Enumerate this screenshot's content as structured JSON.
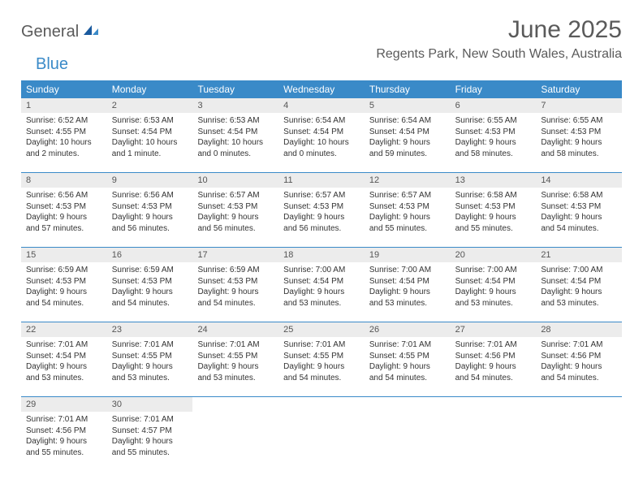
{
  "logo": {
    "part1": "General",
    "part2": "Blue"
  },
  "title": "June 2025",
  "location": "Regents Park, New South Wales, Australia",
  "colors": {
    "header_bg": "#3a8ac8",
    "daynum_bg": "#ececec",
    "text": "#333333",
    "logo_gray": "#5a5a5a",
    "logo_blue": "#3a8ac8"
  },
  "days_of_week": [
    "Sunday",
    "Monday",
    "Tuesday",
    "Wednesday",
    "Thursday",
    "Friday",
    "Saturday"
  ],
  "weeks": [
    [
      {
        "n": "1",
        "sr": "Sunrise: 6:52 AM",
        "ss": "Sunset: 4:55 PM",
        "d1": "Daylight: 10 hours",
        "d2": "and 2 minutes."
      },
      {
        "n": "2",
        "sr": "Sunrise: 6:53 AM",
        "ss": "Sunset: 4:54 PM",
        "d1": "Daylight: 10 hours",
        "d2": "and 1 minute."
      },
      {
        "n": "3",
        "sr": "Sunrise: 6:53 AM",
        "ss": "Sunset: 4:54 PM",
        "d1": "Daylight: 10 hours",
        "d2": "and 0 minutes."
      },
      {
        "n": "4",
        "sr": "Sunrise: 6:54 AM",
        "ss": "Sunset: 4:54 PM",
        "d1": "Daylight: 10 hours",
        "d2": "and 0 minutes."
      },
      {
        "n": "5",
        "sr": "Sunrise: 6:54 AM",
        "ss": "Sunset: 4:54 PM",
        "d1": "Daylight: 9 hours",
        "d2": "and 59 minutes."
      },
      {
        "n": "6",
        "sr": "Sunrise: 6:55 AM",
        "ss": "Sunset: 4:53 PM",
        "d1": "Daylight: 9 hours",
        "d2": "and 58 minutes."
      },
      {
        "n": "7",
        "sr": "Sunrise: 6:55 AM",
        "ss": "Sunset: 4:53 PM",
        "d1": "Daylight: 9 hours",
        "d2": "and 58 minutes."
      }
    ],
    [
      {
        "n": "8",
        "sr": "Sunrise: 6:56 AM",
        "ss": "Sunset: 4:53 PM",
        "d1": "Daylight: 9 hours",
        "d2": "and 57 minutes."
      },
      {
        "n": "9",
        "sr": "Sunrise: 6:56 AM",
        "ss": "Sunset: 4:53 PM",
        "d1": "Daylight: 9 hours",
        "d2": "and 56 minutes."
      },
      {
        "n": "10",
        "sr": "Sunrise: 6:57 AM",
        "ss": "Sunset: 4:53 PM",
        "d1": "Daylight: 9 hours",
        "d2": "and 56 minutes."
      },
      {
        "n": "11",
        "sr": "Sunrise: 6:57 AM",
        "ss": "Sunset: 4:53 PM",
        "d1": "Daylight: 9 hours",
        "d2": "and 56 minutes."
      },
      {
        "n": "12",
        "sr": "Sunrise: 6:57 AM",
        "ss": "Sunset: 4:53 PM",
        "d1": "Daylight: 9 hours",
        "d2": "and 55 minutes."
      },
      {
        "n": "13",
        "sr": "Sunrise: 6:58 AM",
        "ss": "Sunset: 4:53 PM",
        "d1": "Daylight: 9 hours",
        "d2": "and 55 minutes."
      },
      {
        "n": "14",
        "sr": "Sunrise: 6:58 AM",
        "ss": "Sunset: 4:53 PM",
        "d1": "Daylight: 9 hours",
        "d2": "and 54 minutes."
      }
    ],
    [
      {
        "n": "15",
        "sr": "Sunrise: 6:59 AM",
        "ss": "Sunset: 4:53 PM",
        "d1": "Daylight: 9 hours",
        "d2": "and 54 minutes."
      },
      {
        "n": "16",
        "sr": "Sunrise: 6:59 AM",
        "ss": "Sunset: 4:53 PM",
        "d1": "Daylight: 9 hours",
        "d2": "and 54 minutes."
      },
      {
        "n": "17",
        "sr": "Sunrise: 6:59 AM",
        "ss": "Sunset: 4:53 PM",
        "d1": "Daylight: 9 hours",
        "d2": "and 54 minutes."
      },
      {
        "n": "18",
        "sr": "Sunrise: 7:00 AM",
        "ss": "Sunset: 4:54 PM",
        "d1": "Daylight: 9 hours",
        "d2": "and 53 minutes."
      },
      {
        "n": "19",
        "sr": "Sunrise: 7:00 AM",
        "ss": "Sunset: 4:54 PM",
        "d1": "Daylight: 9 hours",
        "d2": "and 53 minutes."
      },
      {
        "n": "20",
        "sr": "Sunrise: 7:00 AM",
        "ss": "Sunset: 4:54 PM",
        "d1": "Daylight: 9 hours",
        "d2": "and 53 minutes."
      },
      {
        "n": "21",
        "sr": "Sunrise: 7:00 AM",
        "ss": "Sunset: 4:54 PM",
        "d1": "Daylight: 9 hours",
        "d2": "and 53 minutes."
      }
    ],
    [
      {
        "n": "22",
        "sr": "Sunrise: 7:01 AM",
        "ss": "Sunset: 4:54 PM",
        "d1": "Daylight: 9 hours",
        "d2": "and 53 minutes."
      },
      {
        "n": "23",
        "sr": "Sunrise: 7:01 AM",
        "ss": "Sunset: 4:55 PM",
        "d1": "Daylight: 9 hours",
        "d2": "and 53 minutes."
      },
      {
        "n": "24",
        "sr": "Sunrise: 7:01 AM",
        "ss": "Sunset: 4:55 PM",
        "d1": "Daylight: 9 hours",
        "d2": "and 53 minutes."
      },
      {
        "n": "25",
        "sr": "Sunrise: 7:01 AM",
        "ss": "Sunset: 4:55 PM",
        "d1": "Daylight: 9 hours",
        "d2": "and 54 minutes."
      },
      {
        "n": "26",
        "sr": "Sunrise: 7:01 AM",
        "ss": "Sunset: 4:55 PM",
        "d1": "Daylight: 9 hours",
        "d2": "and 54 minutes."
      },
      {
        "n": "27",
        "sr": "Sunrise: 7:01 AM",
        "ss": "Sunset: 4:56 PM",
        "d1": "Daylight: 9 hours",
        "d2": "and 54 minutes."
      },
      {
        "n": "28",
        "sr": "Sunrise: 7:01 AM",
        "ss": "Sunset: 4:56 PM",
        "d1": "Daylight: 9 hours",
        "d2": "and 54 minutes."
      }
    ],
    [
      {
        "n": "29",
        "sr": "Sunrise: 7:01 AM",
        "ss": "Sunset: 4:56 PM",
        "d1": "Daylight: 9 hours",
        "d2": "and 55 minutes."
      },
      {
        "n": "30",
        "sr": "Sunrise: 7:01 AM",
        "ss": "Sunset: 4:57 PM",
        "d1": "Daylight: 9 hours",
        "d2": "and 55 minutes."
      },
      {
        "empty": true
      },
      {
        "empty": true
      },
      {
        "empty": true
      },
      {
        "empty": true
      },
      {
        "empty": true
      }
    ]
  ]
}
